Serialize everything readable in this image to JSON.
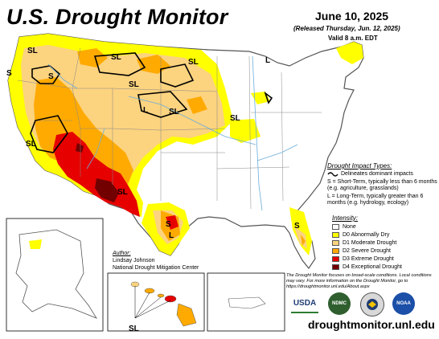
{
  "header": {
    "title": "U.S. Drought Monitor",
    "date": "June 10, 2025",
    "released": "(Released Thursday, Jun. 12, 2025)",
    "valid": "Valid 8 a.m. EDT"
  },
  "impact_types": {
    "heading": "Drought Impact Types:",
    "delineates": "Delineates dominant impacts",
    "short_term": "S = Short-Term, typically less than 6 months (e.g. agriculture, grasslands)",
    "long_term": "L = Long-Term, typically greater than 6 months (e.g. hydrology, ecology)"
  },
  "intensity": {
    "heading": "Intensity:",
    "levels": [
      {
        "label": "None",
        "color": "#ffffff"
      },
      {
        "label": "D0 Abnormally Dry",
        "color": "#ffff00"
      },
      {
        "label": "D1 Moderate Drought",
        "color": "#fcd37f"
      },
      {
        "label": "D2 Severe Drought",
        "color": "#ffaa00"
      },
      {
        "label": "D3 Extreme Drought",
        "color": "#e60000"
      },
      {
        "label": "D4 Exceptional Drought",
        "color": "#730000"
      }
    ]
  },
  "author": {
    "heading": "Author:",
    "name": "Lindsay Johnson",
    "org": "National Drought Mitigation Center"
  },
  "disclaimer": "The Drought Monitor focuses on broad-scale conditions. Local conditions may vary. For more information on the Drought Monitor, go to https://droughtmonitor.unl.edu/About.aspx",
  "logos": {
    "usda": "USDA",
    "ndmc": "NDMC",
    "noaa": "NOAA"
  },
  "url": "droughtmonitor.unl.edu",
  "map_labels": {
    "sl": "SL",
    "s": "S",
    "l": "L"
  }
}
